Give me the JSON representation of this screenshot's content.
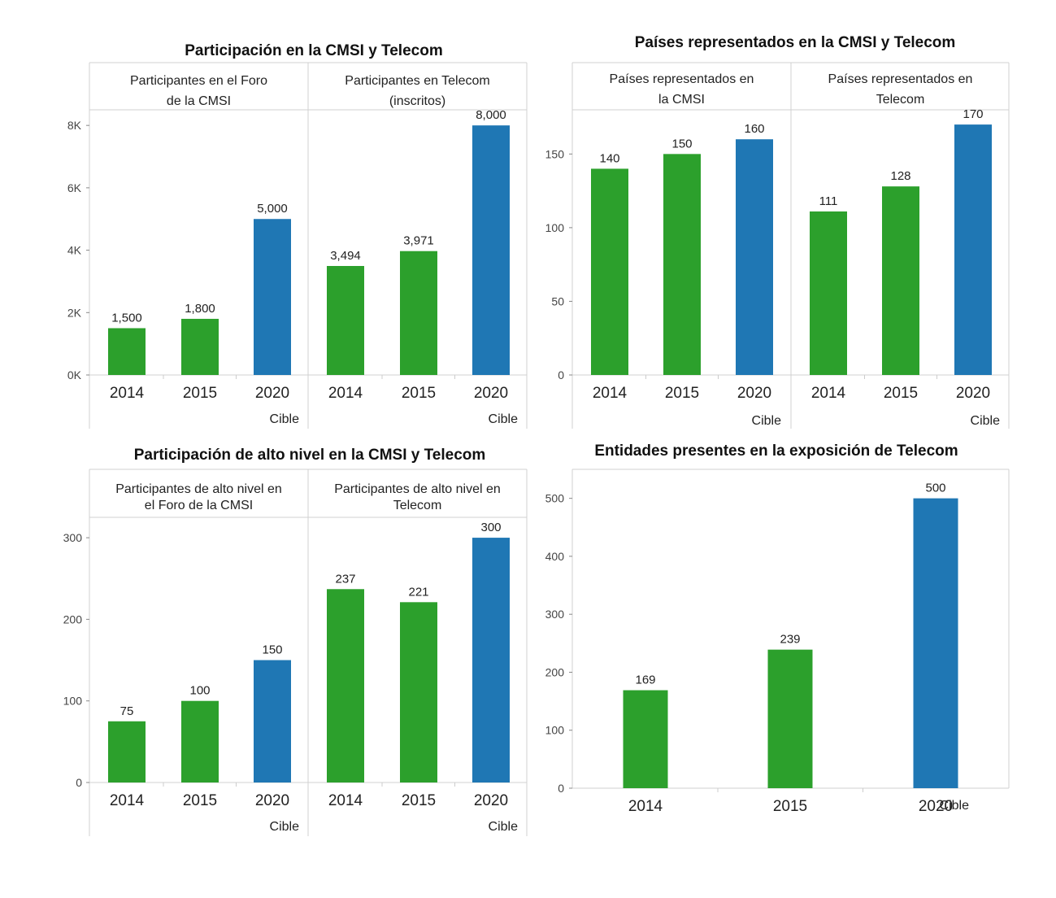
{
  "colors": {
    "green": "#2ca02c",
    "blue": "#1f77b4",
    "frame": "#d0d0d0"
  },
  "chart_data": [
    {
      "id": "participacion",
      "type": "bar",
      "title": "Participación en la CMSI y Telecom",
      "ylim": [
        0,
        8500
      ],
      "yticks": [
        {
          "value": 0,
          "label": "0K"
        },
        {
          "value": 2000,
          "label": "2K"
        },
        {
          "value": 4000,
          "label": "4K"
        },
        {
          "value": 6000,
          "label": "6K"
        },
        {
          "value": 8000,
          "label": "8K"
        }
      ],
      "panels": [
        {
          "header": [
            "Participantes en el Foro",
            "de la CMSI"
          ],
          "categories": [
            "2014",
            "2015",
            "2020"
          ],
          "values": [
            1500,
            1800,
            5000
          ],
          "value_labels": [
            "1,500",
            "1,800",
            "5,000"
          ],
          "target_index": 2,
          "target_label": "Cible"
        },
        {
          "header": [
            "Participantes en Telecom",
            "(inscritos)"
          ],
          "categories": [
            "2014",
            "2015",
            "2020"
          ],
          "values": [
            3494,
            3971,
            8000
          ],
          "value_labels": [
            "3,494",
            "3,971",
            "8,000"
          ],
          "target_index": 2,
          "target_label": "Cible"
        }
      ]
    },
    {
      "id": "paises",
      "type": "bar",
      "title": "Países representados en la CMSI y Telecom",
      "ylim": [
        0,
        180
      ],
      "yticks": [
        {
          "value": 0,
          "label": "0"
        },
        {
          "value": 50,
          "label": "50"
        },
        {
          "value": 100,
          "label": "100"
        },
        {
          "value": 150,
          "label": "150"
        }
      ],
      "panels": [
        {
          "header": [
            "Países representados en",
            "la CMSI"
          ],
          "categories": [
            "2014",
            "2015",
            "2020"
          ],
          "values": [
            140,
            150,
            160
          ],
          "value_labels": [
            "140",
            "150",
            "160"
          ],
          "target_index": 2,
          "target_label": "Cible"
        },
        {
          "header": [
            "Países representados en",
            "Telecom"
          ],
          "categories": [
            "2014",
            "2015",
            "2020"
          ],
          "values": [
            111,
            128,
            170
          ],
          "value_labels": [
            "111",
            "128",
            "170"
          ],
          "target_index": 2,
          "target_label": "Cible"
        }
      ]
    },
    {
      "id": "alto-nivel",
      "type": "bar",
      "title": "Participación de alto nivel en la CMSI y Telecom",
      "ylim": [
        0,
        325
      ],
      "yticks": [
        {
          "value": 0,
          "label": "0"
        },
        {
          "value": 100,
          "label": "100"
        },
        {
          "value": 200,
          "label": "200"
        },
        {
          "value": 300,
          "label": "300"
        }
      ],
      "panels": [
        {
          "header": [
            "Participantes de alto nivel en",
            "el Foro de la CMSI"
          ],
          "categories": [
            "2014",
            "2015",
            "2020"
          ],
          "values": [
            75,
            100,
            150
          ],
          "value_labels": [
            "75",
            "100",
            "150"
          ],
          "target_index": 2,
          "target_label": "Cible"
        },
        {
          "header": [
            "Participantes de alto nivel en",
            "Telecom"
          ],
          "categories": [
            "2014",
            "2015",
            "2020"
          ],
          "values": [
            237,
            221,
            300
          ],
          "value_labels": [
            "237",
            "221",
            "300"
          ],
          "target_index": 2,
          "target_label": "Cible"
        }
      ]
    },
    {
      "id": "entidades",
      "type": "bar",
      "title": "Entidades presentes en la exposición de Telecom",
      "ylim": [
        0,
        550
      ],
      "yticks": [
        {
          "value": 0,
          "label": "0"
        },
        {
          "value": 100,
          "label": "100"
        },
        {
          "value": 200,
          "label": "200"
        },
        {
          "value": 300,
          "label": "300"
        },
        {
          "value": 400,
          "label": "400"
        },
        {
          "value": 500,
          "label": "500"
        }
      ],
      "panels": [
        {
          "header": [],
          "categories": [
            "2014",
            "2015",
            "2020"
          ],
          "values": [
            169,
            239,
            500
          ],
          "value_labels": [
            "169",
            "239",
            "500"
          ],
          "target_index": 2,
          "target_label": "Cible"
        }
      ]
    }
  ]
}
